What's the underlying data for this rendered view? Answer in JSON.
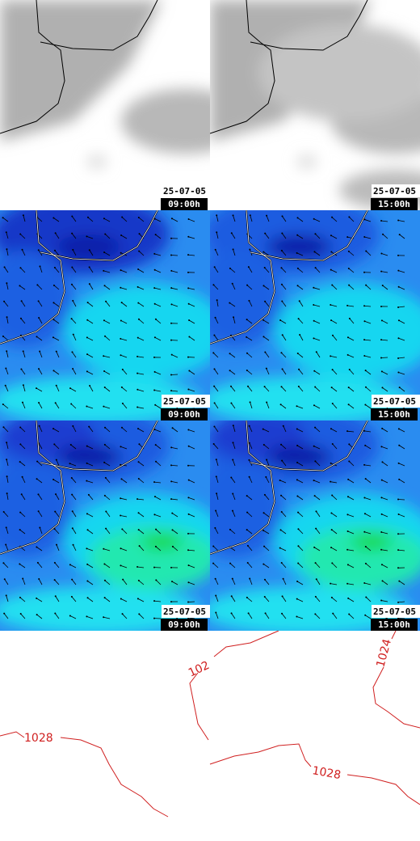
{
  "panels": [
    {
      "date": "25-07-05",
      "time": "09:00h"
    },
    {
      "date": "25-07-05",
      "time": "15:00h"
    },
    {
      "date": "25-07-05",
      "time": "09:00h"
    },
    {
      "date": "25-07-05",
      "time": "15:00h"
    },
    {
      "date": "25-07-05",
      "time": "09:00h"
    },
    {
      "date": "25-07-05",
      "time": "15:00h"
    }
  ],
  "isobars": [
    {
      "label": "1028"
    },
    {
      "label": "102"
    },
    {
      "label": "1024"
    },
    {
      "label": "1028"
    }
  ]
}
